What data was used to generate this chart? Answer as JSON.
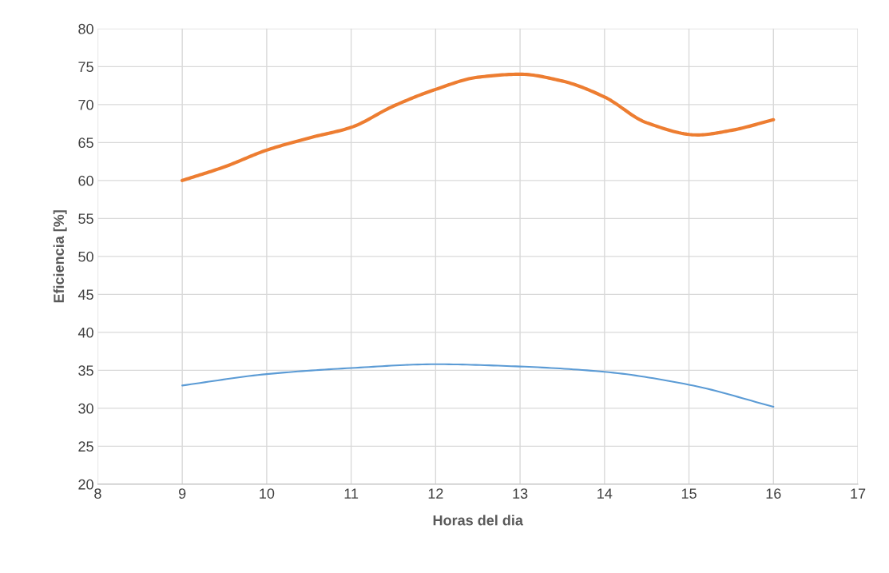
{
  "chart_data": {
    "type": "line",
    "xlabel": "Horas del dia",
    "ylabel": "Eficiencia [%]",
    "x": [
      9,
      10,
      11,
      12,
      13,
      14,
      15,
      16
    ],
    "series": [
      {
        "color": "#ed7d31",
        "x": [
          9,
          9.5,
          10,
          10.5,
          11,
          11.5,
          12,
          12.5,
          13,
          13.5,
          14,
          14.5,
          15.1,
          15.5,
          16
        ],
        "values": [
          60,
          61.8,
          64,
          65.6,
          67,
          69.8,
          72,
          73.6,
          74,
          73.1,
          71,
          67.6,
          66,
          66.6,
          68
        ]
      },
      {
        "color": "#5b9bd5",
        "values": [
          33.0,
          34.5,
          35.3,
          35.8,
          35.5,
          34.8,
          33.1,
          30.2
        ]
      }
    ],
    "xlim": [
      8,
      17
    ],
    "xticks": [
      8,
      9,
      10,
      11,
      12,
      13,
      14,
      15,
      16,
      17
    ],
    "ylim": [
      20,
      80
    ],
    "yticks": [
      20,
      25,
      30,
      35,
      40,
      45,
      50,
      55,
      60,
      65,
      70,
      75,
      80
    ],
    "grid": true,
    "marker": "none",
    "line_style": "solid"
  }
}
